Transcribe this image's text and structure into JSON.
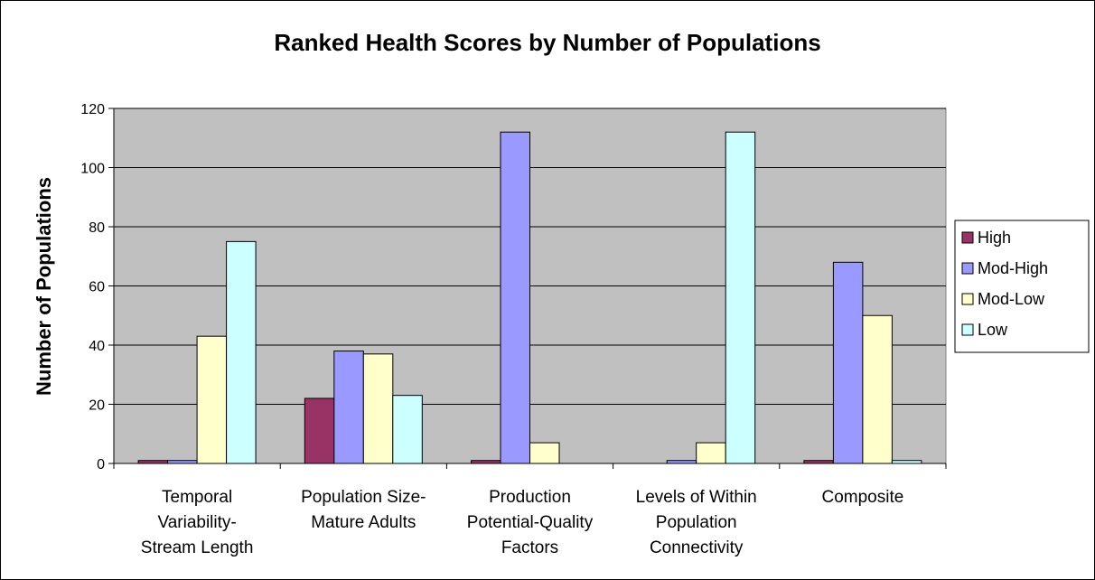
{
  "chart_data": {
    "type": "bar",
    "title": "Ranked Health Scores by Number of Populations",
    "xlabel": "",
    "ylabel": "Number of Populations",
    "ylim": [
      0,
      120
    ],
    "yticks": [
      0,
      20,
      40,
      60,
      80,
      100,
      120
    ],
    "grid": true,
    "legend_position": "right",
    "categories": [
      [
        "Temporal",
        "Variability-",
        "Stream Length"
      ],
      [
        "Population Size-",
        "Mature Adults"
      ],
      [
        "Production",
        "Potential-Quality",
        "Factors"
      ],
      [
        "Levels of Within",
        "Population",
        "Connectivity"
      ],
      [
        "Composite"
      ]
    ],
    "series": [
      {
        "name": "High",
        "color": "#993366",
        "values": [
          1,
          22,
          1,
          0,
          1
        ]
      },
      {
        "name": "Mod-High",
        "color": "#9999FF",
        "values": [
          1,
          38,
          112,
          1,
          68
        ]
      },
      {
        "name": "Mod-Low",
        "color": "#FFFFCC",
        "values": [
          43,
          37,
          7,
          7,
          50
        ]
      },
      {
        "name": "Low",
        "color": "#CCFFFF",
        "values": [
          75,
          23,
          0,
          112,
          1
        ]
      }
    ],
    "plot_background": "#C0C0C0"
  }
}
